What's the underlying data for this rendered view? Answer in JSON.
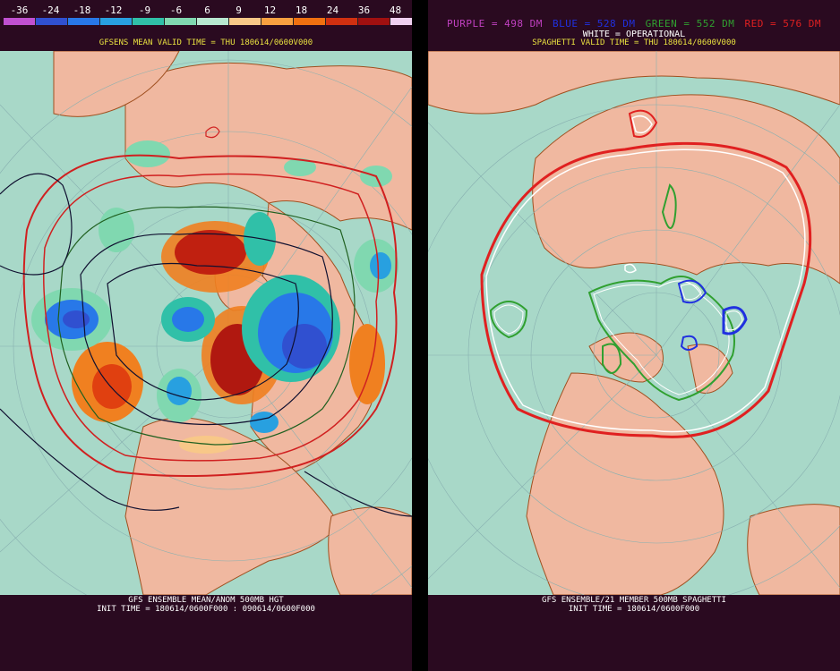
{
  "left_panel": {
    "colorbar_ticks": [
      "-36",
      "-24",
      "-18",
      "-12",
      "-9",
      "-6",
      "6",
      "9",
      "12",
      "18",
      "24",
      "36",
      "48"
    ],
    "colorbar_colors": [
      "#c050d0",
      "#3050d0",
      "#2878e8",
      "#28a0e0",
      "#30c0a8",
      "#80d8b0",
      "#b8e8d0",
      "#f8c888",
      "#f8a040",
      "#f07010",
      "#d03010",
      "#a01010",
      "#f0d0f0"
    ],
    "title": "GFSENS MEAN VALID TIME = THU 180614/0600V000",
    "footer_line1": "GFS ENSEMBLE MEAN/ANOM 500MB HGT",
    "footer_line2": "INIT TIME = 180614/0600F000 : 090614/0600F000"
  },
  "right_panel": {
    "legend": {
      "purple": "PURPLE = 498 DM",
      "blue": "BLUE = 528 DM",
      "green": "GREEN = 552 DM",
      "red": "RED = 576 DM",
      "white": "WHITE = OPERATIONAL"
    },
    "title": "SPAGHETTI VALID TIME = THU 180614/0600V000",
    "footer_line1": "GFS ENSEMBLE/21 MEMBER 500MB SPAGHETTI",
    "footer_line2": "INIT TIME = 180614/0600F000"
  },
  "colors": {
    "ocean": "#a8d8c8",
    "land": "#f0b8a0",
    "border": "#a05020",
    "title_yellow": "#e8e040",
    "purple": "#c040c0",
    "blue": "#2030e0",
    "green": "#30a030",
    "red": "#e02020",
    "white": "#ffffff"
  }
}
